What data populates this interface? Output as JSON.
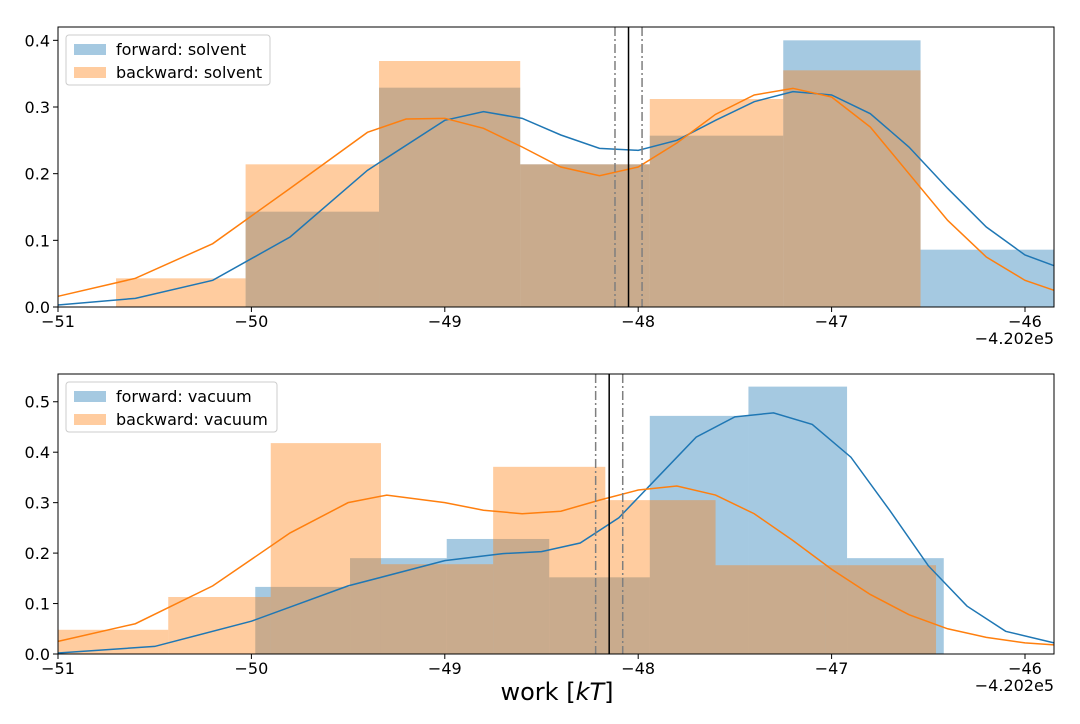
{
  "colors": {
    "forward": "#1f77b4",
    "backward": "#ff7f0e",
    "mean_line": "#000000",
    "ci_line": "#7f7f7f"
  },
  "xlabel": "work [kT]",
  "xlabel_parts": {
    "prefix": "work [",
    "italic": "kT",
    "suffix": "]"
  },
  "chart_data": [
    {
      "type": "bar",
      "name": "solvent",
      "xlim": [
        -51.0,
        -45.85
      ],
      "ylim": [
        0,
        0.42
      ],
      "x_ticks": [
        -51,
        -50,
        -49,
        -48,
        -47,
        -46
      ],
      "x_tick_labels": [
        "−51",
        "−50",
        "−49",
        "−48",
        "−47",
        "−46"
      ],
      "y_ticks": [
        0.0,
        0.1,
        0.2,
        0.3,
        0.4
      ],
      "y_tick_labels": [
        "0.0",
        "0.1",
        "0.2",
        "0.3",
        "0.4"
      ],
      "x_offset_label": "−4.202e5",
      "legend_position": "upper-left",
      "series": [
        {
          "name": "forward: solvent",
          "color_key": "forward",
          "bin_edges": [
            -50.03,
            -49.34,
            -48.61,
            -47.94,
            -47.25,
            -46.54,
            -45.85
          ],
          "values": [
            0.143,
            0.329,
            0.214,
            0.257,
            0.4,
            0.086
          ],
          "kde_x": [
            -51.0,
            -50.6,
            -50.2,
            -49.8,
            -49.4,
            -49.0,
            -48.8,
            -48.6,
            -48.4,
            -48.2,
            -48.0,
            -47.8,
            -47.6,
            -47.4,
            -47.2,
            -47.0,
            -46.8,
            -46.6,
            -46.4,
            -46.2,
            -46.0,
            -45.85
          ],
          "kde_y": [
            0.003,
            0.013,
            0.04,
            0.105,
            0.205,
            0.28,
            0.293,
            0.283,
            0.258,
            0.238,
            0.235,
            0.25,
            0.28,
            0.308,
            0.323,
            0.318,
            0.29,
            0.24,
            0.178,
            0.12,
            0.078,
            0.062
          ]
        },
        {
          "name": "backward: solvent",
          "color_key": "backward",
          "bin_edges": [
            -50.7,
            -50.03,
            -49.34,
            -48.61,
            -47.94,
            -47.25,
            -46.54
          ],
          "values": [
            0.043,
            0.214,
            0.369,
            0.214,
            0.312,
            0.355
          ],
          "kde_x": [
            -51.0,
            -50.6,
            -50.2,
            -49.8,
            -49.4,
            -49.2,
            -49.0,
            -48.8,
            -48.6,
            -48.4,
            -48.2,
            -48.0,
            -47.8,
            -47.6,
            -47.4,
            -47.2,
            -47.0,
            -46.8,
            -46.6,
            -46.4,
            -46.2,
            -46.0,
            -45.85
          ],
          "kde_y": [
            0.016,
            0.043,
            0.095,
            0.178,
            0.262,
            0.282,
            0.283,
            0.268,
            0.24,
            0.21,
            0.197,
            0.21,
            0.246,
            0.289,
            0.318,
            0.328,
            0.315,
            0.27,
            0.2,
            0.13,
            0.075,
            0.04,
            0.025
          ]
        }
      ],
      "mean_line": -48.05,
      "ci_lines": [
        -48.12,
        -47.98
      ]
    },
    {
      "type": "bar",
      "name": "vacuum",
      "xlim": [
        -51.0,
        -45.85
      ],
      "ylim": [
        0,
        0.555
      ],
      "x_ticks": [
        -51,
        -50,
        -49,
        -48,
        -47,
        -46
      ],
      "x_tick_labels": [
        "−51",
        "−50",
        "−49",
        "−48",
        "−47",
        "−46"
      ],
      "y_ticks": [
        0.0,
        0.1,
        0.2,
        0.3,
        0.4,
        0.5
      ],
      "y_tick_labels": [
        "0.0",
        "0.1",
        "0.2",
        "0.3",
        "0.4",
        "0.5"
      ],
      "x_offset_label": "−4.202e5",
      "legend_position": "upper-left",
      "series": [
        {
          "name": "forward: vacuum",
          "color_key": "forward",
          "bin_edges": [
            -49.98,
            -49.49,
            -48.99,
            -48.46,
            -47.94,
            -47.43,
            -46.92,
            -46.42
          ],
          "values": [
            0.133,
            0.19,
            0.228,
            0.152,
            0.472,
            0.53,
            0.19
          ],
          "kde_x": [
            -51.0,
            -50.5,
            -50.0,
            -49.5,
            -49.0,
            -48.7,
            -48.5,
            -48.3,
            -48.1,
            -47.9,
            -47.7,
            -47.5,
            -47.3,
            -47.1,
            -46.9,
            -46.7,
            -46.5,
            -46.3,
            -46.1,
            -45.85
          ],
          "kde_y": [
            0.002,
            0.015,
            0.065,
            0.135,
            0.185,
            0.199,
            0.203,
            0.22,
            0.27,
            0.35,
            0.43,
            0.47,
            0.478,
            0.455,
            0.39,
            0.285,
            0.175,
            0.095,
            0.045,
            0.022
          ]
        },
        {
          "name": "backward: vacuum",
          "color_key": "backward",
          "bin_edges": [
            -51.0,
            -50.43,
            -49.9,
            -49.33,
            -48.75,
            -48.17,
            -47.6,
            -47.03,
            -46.46
          ],
          "values": [
            0.048,
            0.113,
            0.418,
            0.178,
            0.371,
            0.305,
            0.176,
            0.176
          ],
          "kde_x": [
            -51.0,
            -50.6,
            -50.2,
            -49.8,
            -49.5,
            -49.3,
            -49.0,
            -48.8,
            -48.6,
            -48.4,
            -48.2,
            -48.0,
            -47.8,
            -47.6,
            -47.4,
            -47.2,
            -47.0,
            -46.8,
            -46.6,
            -46.4,
            -46.2,
            -46.0,
            -45.85
          ],
          "kde_y": [
            0.025,
            0.06,
            0.135,
            0.24,
            0.3,
            0.315,
            0.3,
            0.285,
            0.278,
            0.283,
            0.305,
            0.325,
            0.333,
            0.315,
            0.278,
            0.225,
            0.168,
            0.118,
            0.078,
            0.05,
            0.033,
            0.022,
            0.018
          ]
        }
      ],
      "mean_line": -48.15,
      "ci_lines": [
        -48.22,
        -48.08
      ]
    }
  ]
}
